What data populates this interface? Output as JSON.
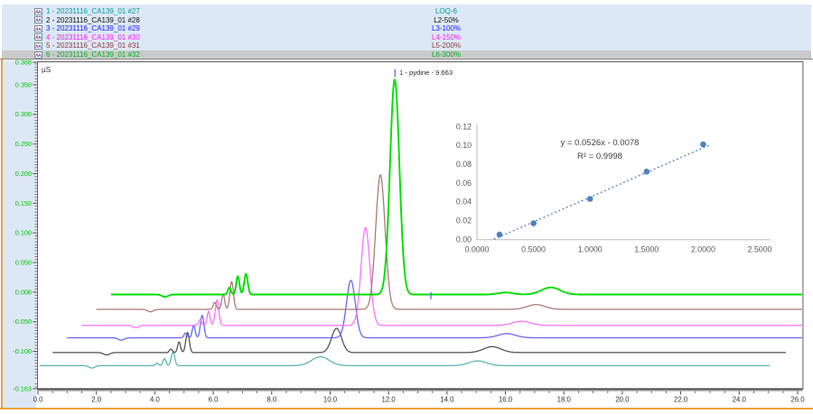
{
  "legend": {
    "selected_index": 5,
    "background": "#dce8f5",
    "highlight": "#c9c9c9"
  },
  "chart_data": [
    {
      "type": "line",
      "name": "chromatogram-overlay",
      "ylabel": "µS",
      "xlim": [
        0,
        26
      ],
      "ylim": [
        -0.163,
        0.388
      ],
      "axis_label_color": "#00c000",
      "x_tick_labels": [
        "0.0",
        "2.0",
        "4.0",
        "6.0",
        "8.0",
        "10.0",
        "12.0",
        "14.0",
        "16.0",
        "18.0",
        "20.0",
        "22.0",
        "24.0",
        "26.0"
      ],
      "y_tick_labels": [
        "0.388",
        "0.350",
        "0.300",
        "0.250",
        "0.200",
        "0.150",
        "0.100",
        "0.050",
        "0.000",
        "-0.050",
        "-0.100",
        "-0.163"
      ],
      "peak_label": "1 - pydine - 9.663",
      "peak_markers": [
        {
          "t": 12.22,
          "v1": 0.363,
          "v2": 0.376
        },
        {
          "t": 13.45,
          "v1": -0.012,
          "v2": 0.0
        }
      ],
      "series": [
        {
          "sample": "1 - 20231116_CA139_01 #27",
          "name": "LOQ-6",
          "legend_color": "#009b9b",
          "color": "#58b2b2",
          "line_width": 1.25,
          "selected": false,
          "baseline": -0.124,
          "t_start": 0.05,
          "t_end": 25.05,
          "peaks": [
            [
              1.85,
              -0.004,
              0.1
            ],
            [
              4.08,
              0.004,
              0.05
            ],
            [
              4.33,
              0.012,
              0.05
            ],
            [
              4.62,
              0.023,
              0.06
            ],
            [
              9.67,
              0.015,
              0.3
            ],
            [
              15.05,
              0.008,
              0.3
            ]
          ]
        },
        {
          "sample": "2 - 20231116_CA139_01 #28",
          "name": "L2-50%",
          "legend_color": "#101010",
          "color": "#4f4f4f",
          "line_width": 1.25,
          "selected": false,
          "baseline": -0.102,
          "t_start": 0.5,
          "t_end": 25.6,
          "peaks": [
            [
              2.35,
              -0.004,
              0.1
            ],
            [
              4.55,
              0.006,
              0.05
            ],
            [
              4.83,
              0.018,
              0.05
            ],
            [
              5.12,
              0.034,
              0.06
            ],
            [
              10.22,
              0.041,
              0.17
            ],
            [
              15.55,
              0.01,
              0.3
            ]
          ]
        },
        {
          "sample": "3 - 20231116_CA139_01 #29",
          "name": "L3-100%",
          "legend_color": "#1717ff",
          "color": "#6363f5",
          "line_width": 1.25,
          "selected": false,
          "baseline": -0.077,
          "t_start": 1.0,
          "t_end": 26.17,
          "peaks": [
            [
              2.85,
              -0.004,
              0.1
            ],
            [
              5.05,
              0.008,
              0.05
            ],
            [
              5.33,
              0.021,
              0.05
            ],
            [
              5.62,
              0.038,
              0.06
            ],
            [
              10.71,
              0.097,
              0.15
            ],
            [
              16.05,
              0.007,
              0.3
            ]
          ]
        },
        {
          "sample": "4 - 20231116_CA139_01 #30",
          "name": "L4-150%",
          "legend_color": "#f919f9",
          "color": "#fb6ffb",
          "line_width": 1.25,
          "selected": false,
          "baseline": -0.056,
          "t_start": 1.5,
          "t_end": 26.17,
          "peaks": [
            [
              3.35,
              -0.004,
              0.1
            ],
            [
              5.55,
              0.01,
              0.05
            ],
            [
              5.84,
              0.024,
              0.05
            ],
            [
              6.13,
              0.043,
              0.06
            ],
            [
              11.21,
              0.165,
              0.15
            ],
            [
              16.55,
              0.007,
              0.3
            ]
          ]
        },
        {
          "sample": "5 - 20231116_CA139_01 #31",
          "name": "L5-200%",
          "legend_color": "#8b3a3a",
          "color": "#aa7676",
          "line_width": 1.25,
          "selected": false,
          "baseline": -0.029,
          "t_start": 2.0,
          "t_end": 26.17,
          "peaks": [
            [
              3.85,
              -0.004,
              0.1
            ],
            [
              6.05,
              0.012,
              0.05
            ],
            [
              6.34,
              0.026,
              0.05
            ],
            [
              6.63,
              0.047,
              0.06
            ],
            [
              11.72,
              0.227,
              0.16
            ],
            [
              17.05,
              0.008,
              0.3
            ]
          ]
        },
        {
          "sample": "6 - 20231116_CA139_01 #32",
          "name": "L6-300%",
          "legend_color": "#00b41e",
          "color": "#00de00",
          "line_width": 1.9,
          "selected": true,
          "baseline": -0.004,
          "t_start": 2.5,
          "t_end": 26.17,
          "peaks": [
            [
              4.35,
              -0.004,
              0.1
            ],
            [
              6.55,
              0.012,
              0.05
            ],
            [
              6.84,
              0.031,
              0.055
            ],
            [
              7.12,
              0.035,
              0.06
            ],
            [
              12.21,
              0.363,
              0.16
            ],
            [
              16.0,
              0.0035,
              0.25
            ],
            [
              17.55,
              0.012,
              0.32
            ]
          ]
        }
      ]
    },
    {
      "type": "scatter",
      "name": "calibration-curve-inset",
      "x": [
        0.2,
        0.5,
        1.0,
        1.5,
        2.0
      ],
      "y": [
        0.005,
        0.017,
        0.043,
        0.072,
        0.101
      ],
      "equation": "y = 0.0526x - 0.0078",
      "r2": "R² = 0.9998",
      "trendline": {
        "slope": 0.0526,
        "intercept": -0.0078,
        "x_start": 0.15,
        "x_end": 2.05,
        "style": "dotted"
      },
      "x_tick_labels": [
        "0.0000",
        "0.5000",
        "1.0000",
        "1.5000",
        "2.0000",
        "2.5000"
      ],
      "y_tick_labels": [
        "0.00",
        "0.02",
        "0.04",
        "0.06",
        "0.08",
        "0.10",
        "0.12"
      ],
      "xlim": [
        0,
        2.5
      ],
      "ylim": [
        0,
        0.12
      ],
      "point_color": "#4f81bd",
      "label_color": "#595959",
      "legend_position": "none",
      "grid": false
    }
  ]
}
